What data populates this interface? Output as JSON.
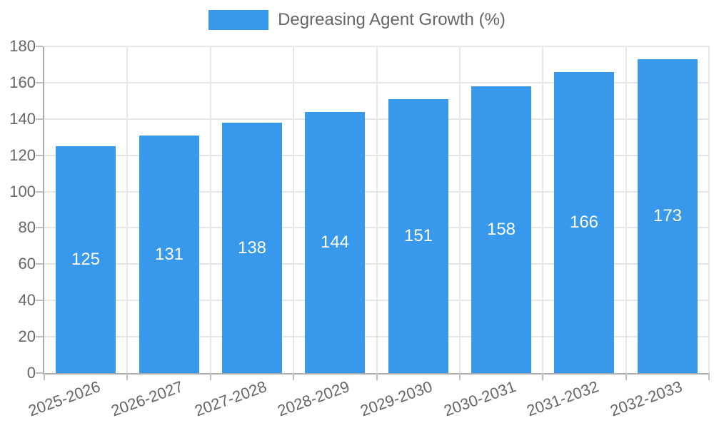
{
  "chart_data": {
    "type": "bar",
    "title": "Degreasing Agent Growth (%)",
    "legend_entries": [
      "Degreasing Agent Growth (%)"
    ],
    "legend_position": "top",
    "categories": [
      "2025-2026",
      "2026-2027",
      "2027-2028",
      "2028-2029",
      "2029-2030",
      "2030-2031",
      "2031-2032",
      "2032-2033"
    ],
    "values": [
      125,
      131,
      138,
      144,
      151,
      158,
      166,
      173
    ],
    "data_labels": [
      "125",
      "131",
      "138",
      "144",
      "151",
      "158",
      "166",
      "173"
    ],
    "xlabel": "",
    "ylabel": "",
    "ylim": [
      0,
      180
    ],
    "ytick_step": 20,
    "yticks": [
      0,
      20,
      40,
      60,
      80,
      100,
      120,
      140,
      160,
      180
    ],
    "grid": true,
    "colors": {
      "bar": "#3899ec",
      "grid_line": "#e6e6e6",
      "axis_line": "#ababab",
      "tick_mark": "#c0c0c0",
      "tick_text": "#666666",
      "legend_text": "#666666",
      "value_label_text": "#ffffff",
      "background": "#ffffff"
    }
  }
}
